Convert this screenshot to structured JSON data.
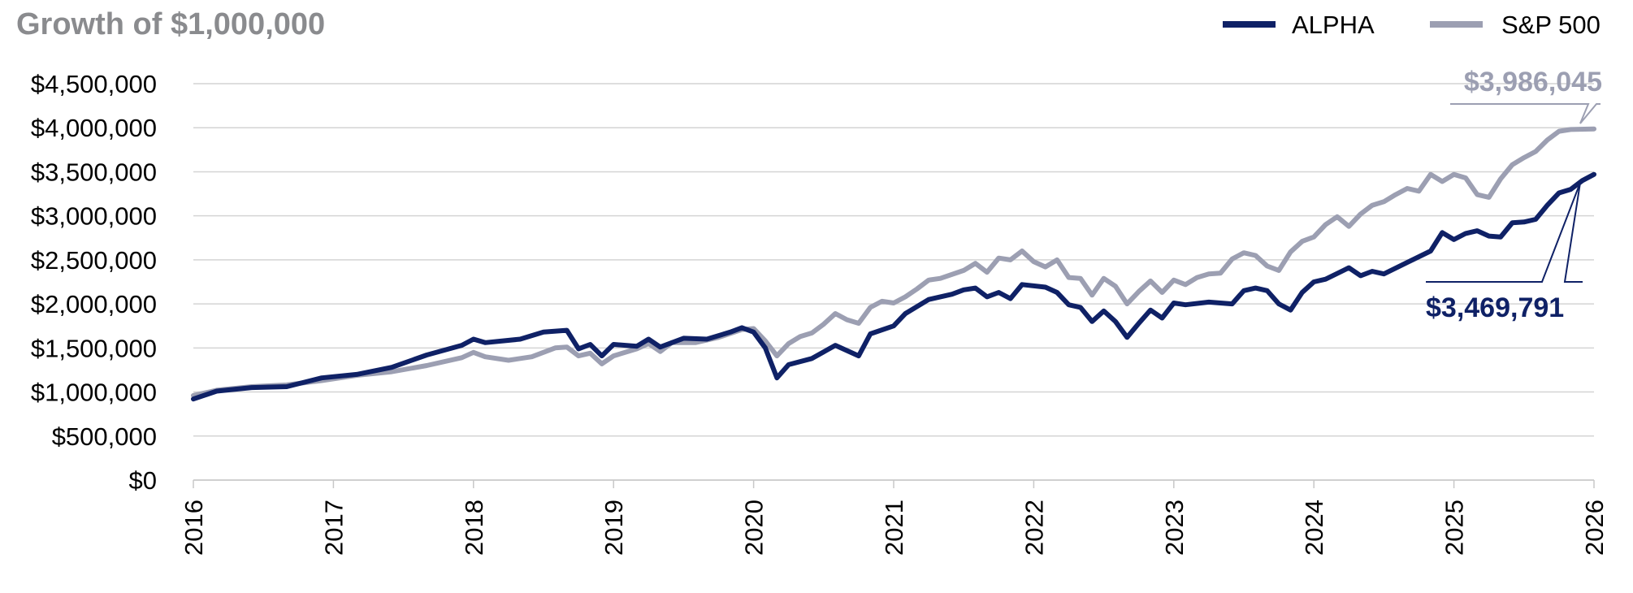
{
  "chart_data": {
    "type": "line",
    "title": "Growth of $1,000,000",
    "xlabel": "",
    "ylabel": "",
    "x_ticks": [
      "2016",
      "2017",
      "2018",
      "2019",
      "2020",
      "2021",
      "2022",
      "2023",
      "2024",
      "2025",
      "2026"
    ],
    "y_ticks": [
      "$0",
      "$500,000",
      "$1,000,000",
      "$1,500,000",
      "$2,000,000",
      "$2,500,000",
      "$3,000,000",
      "$3,500,000",
      "$4,000,000",
      "$4,500,000"
    ],
    "xlim": [
      "2016-01",
      "2026-01"
    ],
    "ylim": [
      0,
      4500000
    ],
    "grid": "horizontal",
    "legend_position": "top-right",
    "colors": {
      "alpha": "#0f2166",
      "sp500": "#9c9fb2",
      "grid": "#d4d4d4",
      "title": "#8a8b8e"
    },
    "end_labels": {
      "alpha": "$3,469,791",
      "sp500": "$3,986,045"
    },
    "series": [
      {
        "name": "ALPHA",
        "color": "#0f2166",
        "points": [
          [
            "2016-01",
            920000
          ],
          [
            "2016-03",
            1010000
          ],
          [
            "2016-06",
            1050000
          ],
          [
            "2016-09",
            1060000
          ],
          [
            "2016-12",
            1160000
          ],
          [
            "2017-03",
            1200000
          ],
          [
            "2017-06",
            1280000
          ],
          [
            "2017-09",
            1420000
          ],
          [
            "2017-12",
            1530000
          ],
          [
            "2018-01",
            1600000
          ],
          [
            "2018-02",
            1560000
          ],
          [
            "2018-05",
            1600000
          ],
          [
            "2018-07",
            1680000
          ],
          [
            "2018-09",
            1700000
          ],
          [
            "2018-10",
            1490000
          ],
          [
            "2018-11",
            1540000
          ],
          [
            "2018-12",
            1410000
          ],
          [
            "2019-01",
            1540000
          ],
          [
            "2019-03",
            1520000
          ],
          [
            "2019-04",
            1600000
          ],
          [
            "2019-05",
            1510000
          ],
          [
            "2019-07",
            1610000
          ],
          [
            "2019-09",
            1600000
          ],
          [
            "2019-11",
            1680000
          ],
          [
            "2019-12",
            1730000
          ],
          [
            "2020-01",
            1680000
          ],
          [
            "2020-02",
            1500000
          ],
          [
            "2020-03",
            1160000
          ],
          [
            "2020-04",
            1310000
          ],
          [
            "2020-06",
            1380000
          ],
          [
            "2020-08",
            1530000
          ],
          [
            "2020-10",
            1410000
          ],
          [
            "2020-11",
            1660000
          ],
          [
            "2021-01",
            1750000
          ],
          [
            "2021-02",
            1890000
          ],
          [
            "2021-04",
            2050000
          ],
          [
            "2021-06",
            2110000
          ],
          [
            "2021-07",
            2160000
          ],
          [
            "2021-08",
            2180000
          ],
          [
            "2021-09",
            2080000
          ],
          [
            "2021-10",
            2130000
          ],
          [
            "2021-11",
            2060000
          ],
          [
            "2021-12",
            2220000
          ],
          [
            "2022-02",
            2190000
          ],
          [
            "2022-03",
            2130000
          ],
          [
            "2022-04",
            1990000
          ],
          [
            "2022-05",
            1960000
          ],
          [
            "2022-06",
            1800000
          ],
          [
            "2022-07",
            1920000
          ],
          [
            "2022-08",
            1800000
          ],
          [
            "2022-09",
            1620000
          ],
          [
            "2022-10",
            1780000
          ],
          [
            "2022-11",
            1930000
          ],
          [
            "2022-12",
            1840000
          ],
          [
            "2023-01",
            2010000
          ],
          [
            "2023-02",
            1990000
          ],
          [
            "2023-04",
            2020000
          ],
          [
            "2023-06",
            2000000
          ],
          [
            "2023-07",
            2150000
          ],
          [
            "2023-08",
            2180000
          ],
          [
            "2023-09",
            2150000
          ],
          [
            "2023-10",
            2000000
          ],
          [
            "2023-11",
            1930000
          ],
          [
            "2023-12",
            2130000
          ],
          [
            "2024-01",
            2250000
          ],
          [
            "2024-02",
            2280000
          ],
          [
            "2024-04",
            2410000
          ],
          [
            "2024-05",
            2320000
          ],
          [
            "2024-06",
            2370000
          ],
          [
            "2024-07",
            2340000
          ],
          [
            "2024-09",
            2470000
          ],
          [
            "2024-11",
            2600000
          ],
          [
            "2024-12",
            2810000
          ],
          [
            "2025-01",
            2730000
          ],
          [
            "2025-02",
            2800000
          ],
          [
            "2025-03",
            2830000
          ],
          [
            "2025-04",
            2770000
          ],
          [
            "2025-05",
            2760000
          ],
          [
            "2025-06",
            2920000
          ],
          [
            "2025-07",
            2930000
          ],
          [
            "2025-08",
            2960000
          ],
          [
            "2025-09",
            3120000
          ],
          [
            "2025-10",
            3260000
          ],
          [
            "2025-11",
            3300000
          ],
          [
            "2025-12",
            3400000
          ],
          [
            "2026-01",
            3469791
          ]
        ]
      },
      {
        "name": "S&P 500",
        "color": "#9c9fb2",
        "points": [
          [
            "2016-01",
            960000
          ],
          [
            "2016-03",
            1020000
          ],
          [
            "2016-06",
            1060000
          ],
          [
            "2016-09",
            1080000
          ],
          [
            "2016-12",
            1130000
          ],
          [
            "2017-03",
            1190000
          ],
          [
            "2017-06",
            1230000
          ],
          [
            "2017-09",
            1300000
          ],
          [
            "2017-12",
            1390000
          ],
          [
            "2018-01",
            1450000
          ],
          [
            "2018-02",
            1400000
          ],
          [
            "2018-04",
            1360000
          ],
          [
            "2018-06",
            1400000
          ],
          [
            "2018-08",
            1500000
          ],
          [
            "2018-09",
            1510000
          ],
          [
            "2018-10",
            1410000
          ],
          [
            "2018-11",
            1440000
          ],
          [
            "2018-12",
            1320000
          ],
          [
            "2019-01",
            1410000
          ],
          [
            "2019-03",
            1490000
          ],
          [
            "2019-04",
            1550000
          ],
          [
            "2019-05",
            1460000
          ],
          [
            "2019-06",
            1560000
          ],
          [
            "2019-08",
            1560000
          ],
          [
            "2019-10",
            1620000
          ],
          [
            "2019-12",
            1710000
          ],
          [
            "2020-01",
            1720000
          ],
          [
            "2020-02",
            1580000
          ],
          [
            "2020-03",
            1410000
          ],
          [
            "2020-04",
            1550000
          ],
          [
            "2020-05",
            1630000
          ],
          [
            "2020-06",
            1670000
          ],
          [
            "2020-07",
            1770000
          ],
          [
            "2020-08",
            1890000
          ],
          [
            "2020-09",
            1820000
          ],
          [
            "2020-10",
            1780000
          ],
          [
            "2020-11",
            1960000
          ],
          [
            "2020-12",
            2030000
          ],
          [
            "2021-01",
            2010000
          ],
          [
            "2021-02",
            2080000
          ],
          [
            "2021-03",
            2170000
          ],
          [
            "2021-04",
            2270000
          ],
          [
            "2021-05",
            2290000
          ],
          [
            "2021-07",
            2380000
          ],
          [
            "2021-08",
            2460000
          ],
          [
            "2021-09",
            2360000
          ],
          [
            "2021-10",
            2520000
          ],
          [
            "2021-11",
            2500000
          ],
          [
            "2021-12",
            2600000
          ],
          [
            "2022-01",
            2480000
          ],
          [
            "2022-02",
            2420000
          ],
          [
            "2022-03",
            2500000
          ],
          [
            "2022-04",
            2300000
          ],
          [
            "2022-05",
            2290000
          ],
          [
            "2022-06",
            2100000
          ],
          [
            "2022-07",
            2290000
          ],
          [
            "2022-08",
            2200000
          ],
          [
            "2022-09",
            2000000
          ],
          [
            "2022-10",
            2140000
          ],
          [
            "2022-11",
            2260000
          ],
          [
            "2022-12",
            2130000
          ],
          [
            "2023-01",
            2270000
          ],
          [
            "2023-02",
            2220000
          ],
          [
            "2023-03",
            2300000
          ],
          [
            "2023-04",
            2340000
          ],
          [
            "2023-05",
            2350000
          ],
          [
            "2023-06",
            2510000
          ],
          [
            "2023-07",
            2580000
          ],
          [
            "2023-08",
            2550000
          ],
          [
            "2023-09",
            2430000
          ],
          [
            "2023-10",
            2380000
          ],
          [
            "2023-11",
            2590000
          ],
          [
            "2023-12",
            2710000
          ],
          [
            "2024-01",
            2760000
          ],
          [
            "2024-02",
            2900000
          ],
          [
            "2024-03",
            2990000
          ],
          [
            "2024-04",
            2880000
          ],
          [
            "2024-05",
            3020000
          ],
          [
            "2024-06",
            3120000
          ],
          [
            "2024-07",
            3160000
          ],
          [
            "2024-08",
            3240000
          ],
          [
            "2024-09",
            3310000
          ],
          [
            "2024-10",
            3280000
          ],
          [
            "2024-11",
            3470000
          ],
          [
            "2024-12",
            3390000
          ],
          [
            "2025-01",
            3470000
          ],
          [
            "2025-02",
            3430000
          ],
          [
            "2025-03",
            3240000
          ],
          [
            "2025-04",
            3210000
          ],
          [
            "2025-05",
            3420000
          ],
          [
            "2025-06",
            3580000
          ],
          [
            "2025-07",
            3660000
          ],
          [
            "2025-08",
            3730000
          ],
          [
            "2025-09",
            3860000
          ],
          [
            "2025-10",
            3960000
          ],
          [
            "2025-11",
            3980000
          ],
          [
            "2026-01",
            3986045
          ]
        ]
      }
    ]
  }
}
